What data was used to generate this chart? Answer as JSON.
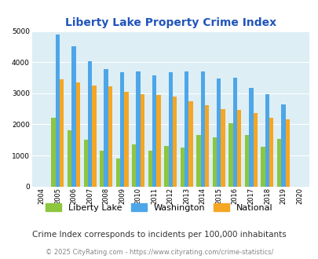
{
  "title": "Liberty Lake Property Crime Index",
  "years": [
    "2004",
    "2005",
    "2006",
    "2007",
    "2008",
    "2009",
    "2010",
    "2011",
    "2012",
    "2013",
    "2014",
    "2015",
    "2016",
    "2017",
    "2018",
    "2019",
    "2020"
  ],
  "liberty_lake": [
    0,
    2200,
    1800,
    1500,
    1150,
    900,
    1350,
    1150,
    1300,
    1250,
    1650,
    1575,
    2025,
    1650,
    1275,
    1525,
    0
  ],
  "washington": [
    0,
    4900,
    4500,
    4025,
    3775,
    3675,
    3700,
    3575,
    3675,
    3700,
    3700,
    3475,
    3500,
    3175,
    2975,
    2650,
    0
  ],
  "national": [
    0,
    3450,
    3350,
    3250,
    3225,
    3050,
    2975,
    2950,
    2900,
    2750,
    2625,
    2500,
    2475,
    2375,
    2200,
    2150,
    0
  ],
  "liberty_lake_color": "#8dc63f",
  "washington_color": "#4da6e8",
  "national_color": "#f5a623",
  "bg_color": "#ddeef5",
  "ylim": [
    0,
    5000
  ],
  "yticks": [
    0,
    1000,
    2000,
    3000,
    4000,
    5000
  ],
  "subtitle": "Crime Index corresponds to incidents per 100,000 inhabitants",
  "footer": "© 2025 CityRating.com - https://www.cityrating.com/crime-statistics/",
  "title_color": "#2255bb",
  "subtitle_color": "#333333",
  "footer_color": "#888888",
  "legend_labels": [
    "Liberty Lake",
    "Washington",
    "National"
  ]
}
